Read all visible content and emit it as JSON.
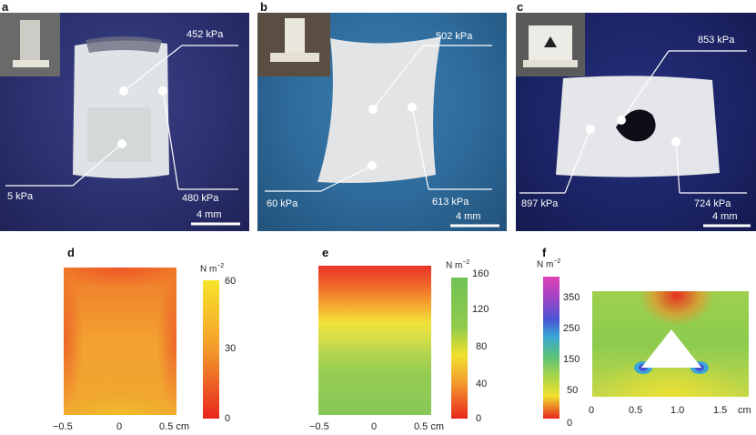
{
  "panels": {
    "a": {
      "label": "a",
      "annotations": [
        "452 kPa",
        "5 kPa",
        "480 kPa"
      ],
      "scale_label": "4 mm"
    },
    "b": {
      "label": "b",
      "annotations": [
        "502 kPa",
        "60 kPa",
        "613 kPa"
      ],
      "scale_label": "4 mm"
    },
    "c": {
      "label": "c",
      "annotations": [
        "853 kPa",
        "897 kPa",
        "724 kPa"
      ],
      "scale_label": "4 mm"
    },
    "d": {
      "label": "d",
      "unit": "N m",
      "unit_exp": "−2",
      "colorbar_ticks": [
        "60",
        "30",
        "0"
      ],
      "x_ticks": [
        "−0.5",
        "0",
        "0.5 cm"
      ]
    },
    "e": {
      "label": "e",
      "unit": "N m",
      "unit_exp": "−2",
      "colorbar_ticks": [
        "160",
        "120",
        "80",
        "40",
        "0"
      ],
      "x_ticks": [
        "−0.5",
        "0",
        "0.5 cm"
      ]
    },
    "f": {
      "label": "f",
      "unit": "N m",
      "unit_exp": "−2",
      "colorbar_ticks": [
        "350",
        "250",
        "150",
        "50",
        "0"
      ],
      "x_ticks": [
        "0",
        "0.5",
        "1.0",
        "1.5",
        "cm"
      ]
    }
  },
  "colors": {
    "photo_bg_a": "#2c3170",
    "photo_bg_b": "#2e6a9a",
    "photo_bg_c": "#1c2466",
    "hydrogel": "#e4e6ea",
    "heat_hot": "#f0e02a",
    "heat_cold": "#e82a1e",
    "heat_green": "#7ec850"
  }
}
